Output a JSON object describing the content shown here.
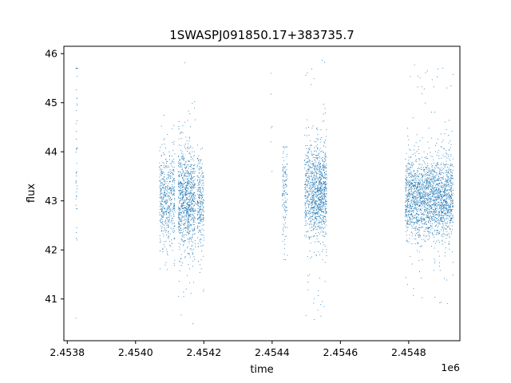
{
  "chart_data": {
    "type": "scatter",
    "title": "1SWASPJ091850.17+383735.7",
    "xlabel": "time",
    "ylabel": "flux",
    "x_offset_label": "1e6",
    "xlim": [
      2453790,
      2454950
    ],
    "ylim": [
      40.15,
      46.15
    ],
    "x_ticks": [
      2453800,
      2454000,
      2454200,
      2454400,
      2454600,
      2454800
    ],
    "x_tick_labels": [
      "2.4538",
      "2.4540",
      "2.4542",
      "2.4544",
      "2.4546",
      "2.4548"
    ],
    "y_ticks": [
      41,
      42,
      43,
      44,
      45,
      46
    ],
    "y_tick_labels": [
      "41",
      "42",
      "43",
      "44",
      "45",
      "46"
    ],
    "grid": false,
    "marker_color": "#1f77b4",
    "observing_blocks": [
      {
        "x_start": 2453825,
        "x_end": 2453830,
        "y_center": 44.0,
        "y_spread": 1.4,
        "y_min": 40.55,
        "y_max": 45.7,
        "points": 45
      },
      {
        "x_start": 2454070,
        "x_end": 2454115,
        "y_center": 43.05,
        "y_spread": 0.45,
        "y_min": 41.6,
        "y_max": 44.9,
        "points": 520
      },
      {
        "x_start": 2454125,
        "x_end": 2454175,
        "y_center": 43.05,
        "y_spread": 0.5,
        "y_min": 40.4,
        "y_max": 45.85,
        "points": 900
      },
      {
        "x_start": 2454180,
        "x_end": 2454200,
        "y_center": 43.0,
        "y_spread": 0.45,
        "y_min": 41.15,
        "y_max": 44.2,
        "points": 260
      },
      {
        "x_start": 2454395,
        "x_end": 2454400,
        "y_center": 44.3,
        "y_spread": 0.9,
        "y_min": 43.6,
        "y_max": 45.6,
        "points": 6
      },
      {
        "x_start": 2454430,
        "x_end": 2454445,
        "y_center": 43.2,
        "y_spread": 0.5,
        "y_min": 41.8,
        "y_max": 44.1,
        "points": 130
      },
      {
        "x_start": 2454495,
        "x_end": 2454515,
        "y_center": 43.2,
        "y_spread": 0.55,
        "y_min": 40.6,
        "y_max": 45.7,
        "points": 250
      },
      {
        "x_start": 2454515,
        "x_end": 2454560,
        "y_center": 43.2,
        "y_spread": 0.5,
        "y_min": 40.5,
        "y_max": 45.9,
        "points": 850
      },
      {
        "x_start": 2454790,
        "x_end": 2454930,
        "y_center": 43.05,
        "y_spread": 0.42,
        "y_min": 40.9,
        "y_max": 45.8,
        "points": 2100
      }
    ]
  }
}
